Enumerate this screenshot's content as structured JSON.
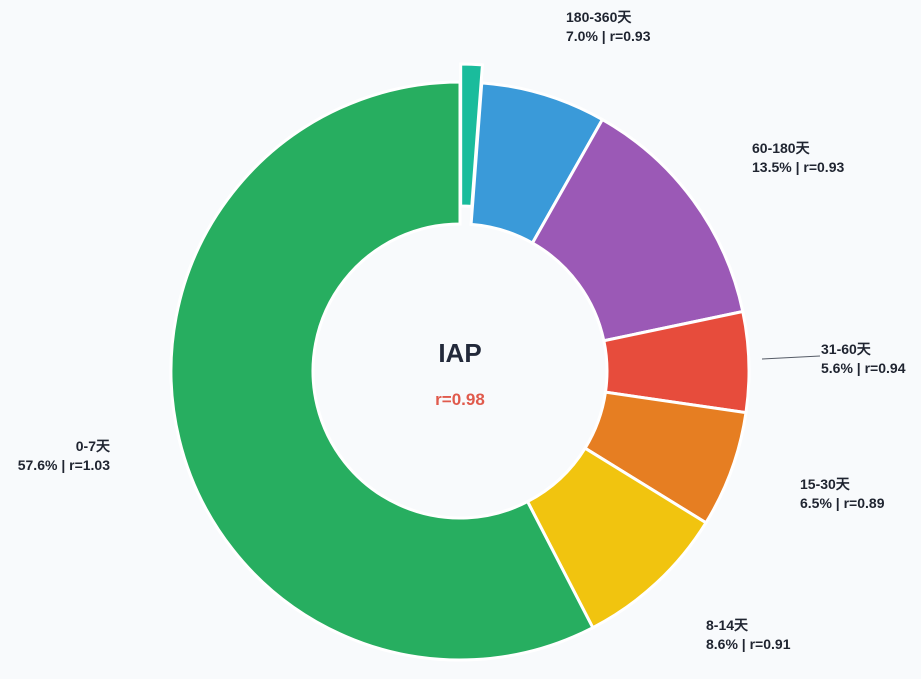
{
  "chart_data": {
    "type": "pie",
    "style": "donut",
    "title": "",
    "center_title": "IAP",
    "center_subtitle": "r=0.98",
    "center_subtitle_color": "#e05a4c",
    "slices": [
      {
        "label": "180-360天",
        "value": 1.2,
        "color": "#1abc9c",
        "exploded": true,
        "annotation": ""
      },
      {
        "label": "180-360天",
        "value": 7.0,
        "color": "#3a9ad9",
        "annotation": "7.0% | r=0.93"
      },
      {
        "label": "60-180天",
        "value": 13.5,
        "color": "#9b59b6",
        "annotation": "13.5% | r=0.93"
      },
      {
        "label": "31-60天",
        "value": 5.6,
        "color": "#e74c3c",
        "annotation": "5.6% | r=0.94"
      },
      {
        "label": "15-30天",
        "value": 6.5,
        "color": "#e67e22",
        "annotation": "6.5% | r=0.89"
      },
      {
        "label": "8-14天",
        "value": 8.6,
        "color": "#f1c40f",
        "annotation": "8.6% | r=0.91"
      },
      {
        "label": "0-7天",
        "value": 57.6,
        "color": "#27ae60",
        "annotation": "57.6% | r=1.03"
      }
    ]
  }
}
